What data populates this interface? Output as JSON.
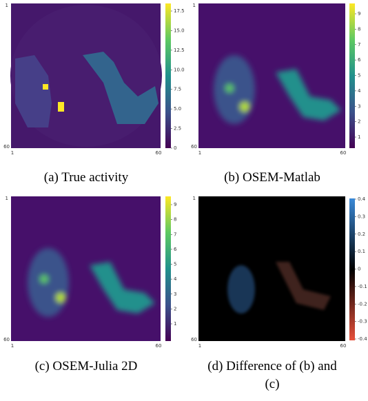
{
  "panels": [
    {
      "caption": "(a) True activity",
      "axis_ticks": [
        "1",
        "60",
        "1",
        "60"
      ],
      "colorbar_ticks": [
        "17.5",
        "15.0",
        "12.5",
        "10.0",
        "7.5",
        "5.0",
        "2.5",
        "0"
      ]
    },
    {
      "caption": "(b) OSEM-Matlab",
      "axis_ticks": [
        "1",
        "60",
        "1",
        "60"
      ],
      "colorbar_ticks": [
        "9",
        "8",
        "7",
        "6",
        "5",
        "4",
        "3",
        "2",
        "1"
      ]
    },
    {
      "caption": "(c) OSEM-Julia 2D",
      "axis_ticks": [
        "1",
        "60",
        "1",
        "60"
      ],
      "colorbar_ticks": [
        "9",
        "8",
        "7",
        "6",
        "5",
        "4",
        "3",
        "2",
        "1"
      ]
    },
    {
      "caption": "(d) Difference of (b) and (c)",
      "axis_ticks": [
        "1",
        "60",
        "1",
        "60"
      ],
      "colorbar_ticks": [
        "0.4",
        "0.3",
        "0.2",
        "0.1",
        "0",
        "-0.1",
        "-0.2",
        "-0.3",
        "-0.4"
      ]
    }
  ]
}
